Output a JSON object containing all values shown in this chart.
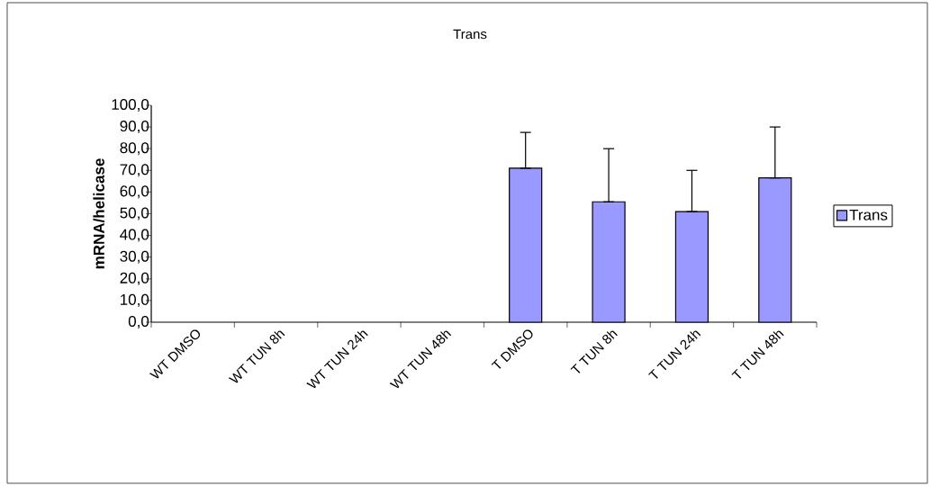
{
  "chart_data": {
    "type": "bar",
    "title": "Trans",
    "ylabel": "mRNA/helicase",
    "categories": [
      "WT DMSO",
      "WT TUN 8h",
      "WT TUN 24h",
      "WT TUN 48h",
      "T DMSO",
      "T TUN 8h",
      "T TUN 24h",
      "T TUN 48h"
    ],
    "series": [
      {
        "name": "Trans",
        "color": "#9999ff",
        "values": [
          null,
          null,
          null,
          null,
          71,
          55.5,
          51,
          66.5
        ],
        "errors": [
          null,
          null,
          null,
          null,
          [
            71,
            87.5
          ],
          [
            55.5,
            80
          ],
          [
            51,
            70
          ],
          [
            66.5,
            90
          ]
        ]
      }
    ],
    "ylim": [
      0,
      100
    ],
    "yticks": [
      {
        "value": 0,
        "label": "0,0"
      },
      {
        "value": 10,
        "label": "10,0"
      },
      {
        "value": 20,
        "label": "20,0"
      },
      {
        "value": 30,
        "label": "30,0"
      },
      {
        "value": 40,
        "label": "40,0"
      },
      {
        "value": 50,
        "label": "50,0"
      },
      {
        "value": 60,
        "label": "60,0"
      },
      {
        "value": 70,
        "label": "70,0"
      },
      {
        "value": 80,
        "label": "80,0"
      },
      {
        "value": 90,
        "label": "90,0"
      },
      {
        "value": 100,
        "label": "100,0"
      }
    ],
    "grid": false,
    "legend": "right"
  }
}
